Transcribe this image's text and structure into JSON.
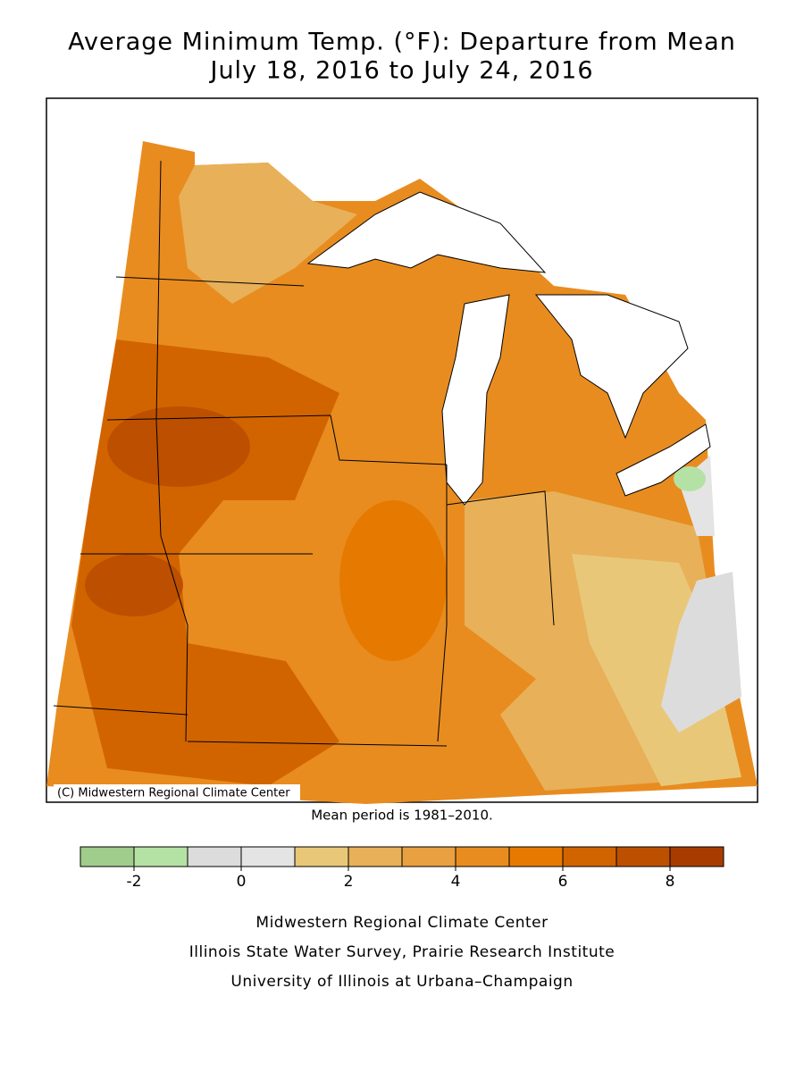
{
  "title": "Average Minimum Temp. (°F): Departure from Mean",
  "subtitle": "July 18, 2016 to July 24, 2016",
  "copyright": "(C) Midwestern Regional Climate Center",
  "mean_period": "Mean period is 1981–2010.",
  "colorbar": {
    "bounds": [
      -3,
      -2,
      -1,
      0,
      1,
      2,
      3,
      4,
      5,
      6,
      7,
      8,
      9
    ],
    "colors": [
      "#a0cc8c",
      "#b4e2a4",
      "#dcdcdc",
      "#e4e4e4",
      "#e8c878",
      "#e8b058",
      "#e8a040",
      "#e88c20",
      "#e67a00",
      "#d26400",
      "#bc5000",
      "#a83c00"
    ],
    "ticks": [
      -2,
      0,
      2,
      4,
      6,
      8
    ]
  },
  "credits": [
    "Midwestern Regional Climate Center",
    "Illinois State Water Survey, Prairie Research Institute",
    "University of Illinois at Urbana–Champaign"
  ]
}
